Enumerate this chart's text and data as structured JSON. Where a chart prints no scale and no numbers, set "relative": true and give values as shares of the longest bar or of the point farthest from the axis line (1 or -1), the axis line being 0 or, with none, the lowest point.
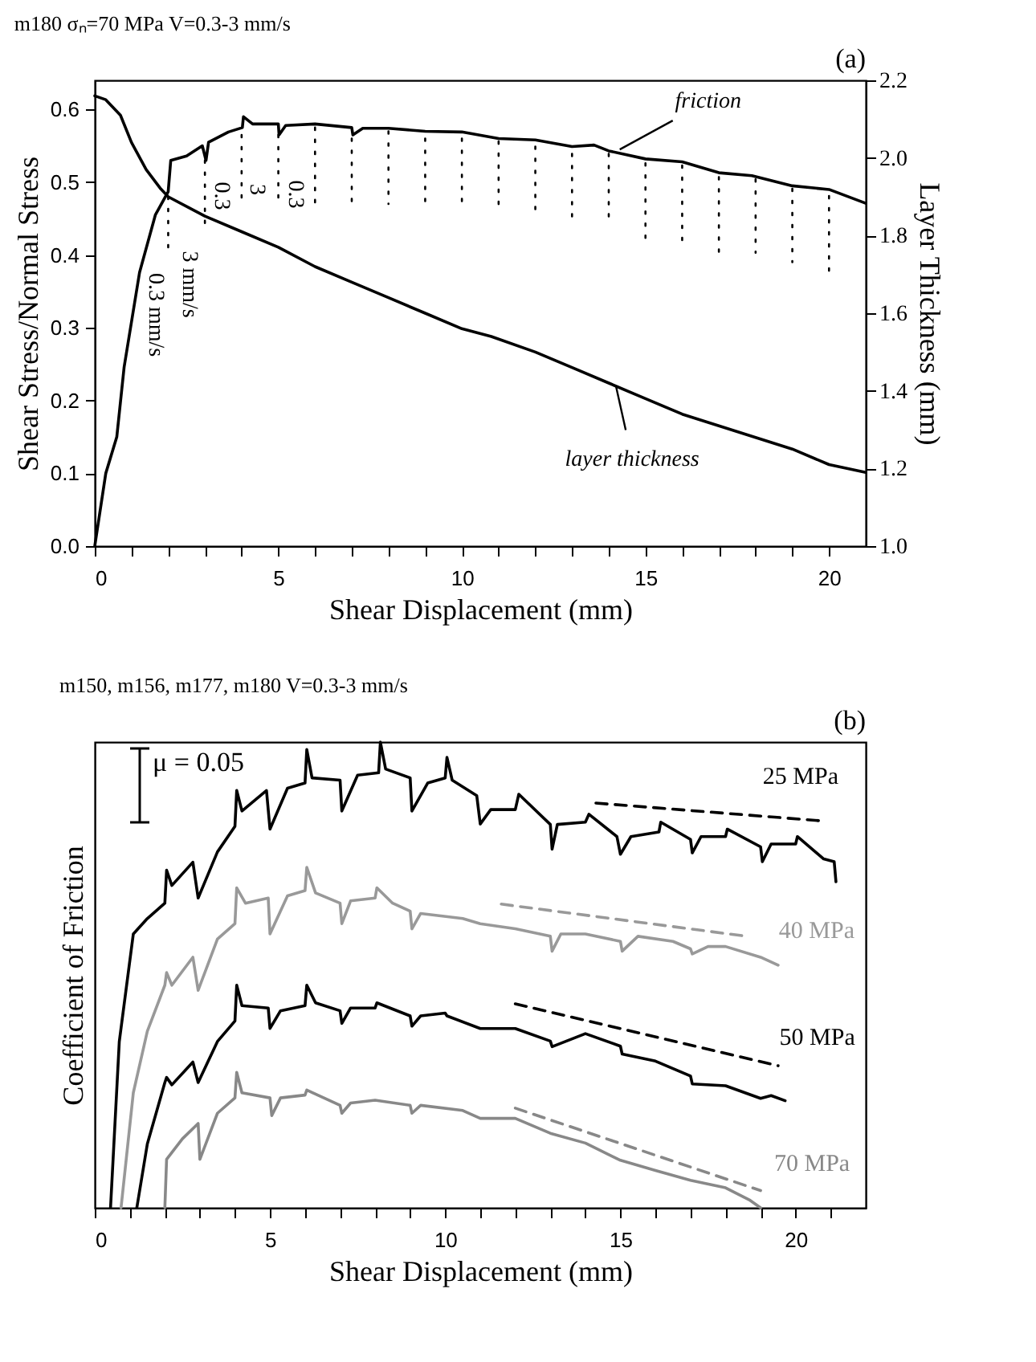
{
  "chart_data": [
    {
      "type": "line",
      "line_style": "solid",
      "title": "m180  σₙ=70 MPa  V=0.3-3 mm/s",
      "xlabel": "Shear Displacement (mm)",
      "ylabel": "Shear Stress/Normal Stress",
      "y2label": "Layer Thickness (mm)",
      "xlim": [
        0,
        21
      ],
      "xticks": [
        0,
        {
          "value": 1,
          "label": null
        },
        {
          "value": 2,
          "label": null
        },
        {
          "value": 3,
          "label": null
        },
        {
          "value": 4,
          "label": null
        },
        5,
        {
          "value": 6,
          "label": null
        },
        {
          "value": 7,
          "label": null
        },
        {
          "value": 8,
          "label": null
        },
        {
          "value": 9,
          "label": null
        },
        10,
        {
          "value": 11,
          "label": null
        },
        {
          "value": 12,
          "label": null
        },
        {
          "value": 13,
          "label": null
        },
        {
          "value": 14,
          "label": null
        },
        15,
        {
          "value": 16,
          "label": null
        },
        {
          "value": 17,
          "label": null
        },
        {
          "value": 18,
          "label": null
        },
        {
          "value": 19,
          "label": null
        },
        20
      ],
      "ylim": [
        0,
        0.64
      ],
      "yticks": [
        {
          "value": 0,
          "label": "0.0"
        },
        0.1,
        0.2,
        0.3,
        0.4,
        0.5,
        0.6
      ],
      "y2lim": [
        1.0,
        2.2
      ],
      "y2ticks": [
        {
          "value": 1,
          "label": "1.0"
        },
        1.2,
        1.4,
        1.6,
        1.8,
        {
          "value": 2,
          "label": "2.0"
        },
        2.2
      ],
      "series": [
        {
          "color": "#000000",
          "x": [
            0,
            0.3,
            0.6,
            0.8,
            1.22,
            1.65,
            2.0,
            2.07,
            2.5,
            2.93,
            3.03,
            3.1,
            3.64,
            4.02,
            4.05,
            4.3,
            5.0,
            5.02,
            5.2,
            6.0,
            7.0,
            7.03,
            7.3,
            8.0,
            9.0,
            10.0,
            11.0,
            12.0,
            13.0,
            13.6,
            14.0,
            15.0,
            16.0,
            17.0,
            17.9,
            19.0,
            20.0,
            21.0
          ],
          "values": [
            0,
            0.1,
            0.15,
            0.246,
            0.376,
            0.455,
            0.487,
            0.53,
            0.536,
            0.55,
            0.53,
            0.555,
            0.569,
            0.575,
            0.59,
            0.58,
            0.58,
            0.565,
            0.578,
            0.58,
            0.575,
            0.565,
            0.574,
            0.574,
            0.57,
            0.569,
            0.56,
            0.558,
            0.549,
            0.551,
            0.543,
            0.532,
            0.528,
            0.513,
            0.509,
            0.495,
            0.49,
            0.471
          ]
        },
        {
          "color": "#000000",
          "axis": "y2",
          "x": [
            0,
            0.3,
            0.7,
            1.0,
            1.4,
            1.8,
            2.0,
            3.0,
            4.0,
            5.0,
            6.0,
            7.0,
            8.0,
            9.0,
            10.0,
            10.8,
            12.0,
            13.0,
            14.0,
            15.0,
            16.0,
            17.0,
            18.0,
            19.0,
            20.0,
            21.0
          ],
          "values": [
            2.16,
            2.15,
            2.11,
            2.04,
            1.97,
            1.92,
            1.9,
            1.85,
            1.81,
            1.77,
            1.72,
            1.68,
            1.64,
            1.6,
            1.56,
            1.54,
            1.5,
            1.46,
            1.42,
            1.38,
            1.34,
            1.31,
            1.28,
            1.25,
            1.21,
            1.19
          ]
        },
        {
          "type": "line",
          "line_style": "dotted",
          "color": "#000000",
          "x": [
            2,
            2,
            null,
            3,
            3,
            null,
            4,
            4,
            null,
            5,
            5,
            null,
            6,
            6,
            null,
            7,
            7,
            null,
            8,
            8,
            null,
            9,
            9,
            null,
            10,
            10,
            null,
            11,
            11,
            null,
            12,
            12,
            null,
            13,
            13,
            null,
            14,
            14,
            null,
            15,
            15,
            null,
            16,
            16,
            null,
            17,
            17,
            null,
            18,
            18,
            null,
            19,
            19,
            null,
            20,
            20
          ],
          "values": [
            0.48,
            0.41,
            null,
            0.53,
            0.44,
            null,
            0.565,
            0.468,
            null,
            0.565,
            0.47,
            null,
            0.575,
            0.47,
            null,
            0.56,
            0.47,
            null,
            0.57,
            0.47,
            null,
            0.56,
            0.47,
            null,
            0.56,
            0.47,
            null,
            0.556,
            0.461,
            null,
            0.549,
            0.461,
            null,
            0.539,
            0.451,
            null,
            0.539,
            0.445,
            null,
            0.526,
            0.419,
            null,
            0.523,
            0.419,
            null,
            0.507,
            0.403,
            null,
            0.504,
            0.403,
            null,
            0.491,
            0.39,
            null,
            0.481,
            0.377
          ]
        }
      ],
      "annotations": [
        "(a)",
        {
          "text": "friction",
          "x": 14.3,
          "y": 0.545
        },
        {
          "text": "layer thickness",
          "x": 14.2,
          "y": 0.219
        },
        "0.3 mm/s",
        "3 mm/s",
        "0.3",
        "3",
        "0.3"
      ]
    },
    {
      "type": "line",
      "line_style": "solid",
      "relative": true,
      "title": "m150, m156, m177, m180    V=0.3-3 mm/s",
      "xlabel": "Shear Displacement (mm)",
      "ylabel": "Coefficient of Friction",
      "xlim": [
        0,
        22
      ],
      "xticks": [
        0,
        {
          "value": 1,
          "label": null
        },
        {
          "value": 2,
          "label": null
        },
        {
          "value": 3,
          "label": null
        },
        {
          "value": 4,
          "label": null
        },
        5,
        {
          "value": 6,
          "label": null
        },
        {
          "value": 7,
          "label": null
        },
        {
          "value": 8,
          "label": null
        },
        {
          "value": 9,
          "label": null
        },
        10,
        {
          "value": 11,
          "label": null
        },
        {
          "value": 12,
          "label": null
        },
        {
          "value": 13,
          "label": null
        },
        {
          "value": 14,
          "label": null
        },
        15,
        {
          "value": 16,
          "label": null
        },
        {
          "value": 17,
          "label": null
        },
        {
          "value": 18,
          "label": null
        },
        {
          "value": 19,
          "label": null
        },
        20,
        {
          "value": 21,
          "label": null
        }
      ],
      "series": [
        {
          "name": "25 MPa",
          "color": "#000000",
          "x": [
            0.45,
            0.7,
            1.1,
            1.5,
            2.0,
            2.05,
            2.2,
            2.8,
            2.95,
            3.5,
            4.0,
            4.05,
            4.2,
            4.9,
            5.0,
            5.5,
            6.0,
            6.05,
            6.2,
            7.0,
            7.05,
            7.5,
            8.1,
            8.15,
            8.3,
            9.0,
            9.05,
            9.5,
            10.0,
            10.05,
            10.2,
            10.9,
            11.0,
            11.3,
            12.0,
            12.1,
            13.0,
            13.05,
            13.2,
            14.0,
            14.1,
            14.9,
            15.0,
            15.3,
            16.1,
            16.15,
            17.0,
            17.05,
            17.3,
            18.0,
            18.05,
            19.0,
            19.05,
            19.3,
            20.0,
            20.05,
            20.8,
            21.1,
            21.15
          ],
          "values": [
            0,
            0.357,
            0.588,
            0.621,
            0.654,
            0.725,
            0.692,
            0.742,
            0.665,
            0.764,
            0.819,
            0.896,
            0.852,
            0.896,
            0.813,
            0.901,
            0.912,
            0.984,
            0.923,
            0.918,
            0.852,
            0.929,
            0.934,
            1.0,
            0.942,
            0.923,
            0.852,
            0.912,
            0.923,
            0.967,
            0.918,
            0.885,
            0.824,
            0.855,
            0.855,
            0.888,
            0.823,
            0.77,
            0.823,
            0.828,
            0.845,
            0.797,
            0.759,
            0.797,
            0.807,
            0.828,
            0.791,
            0.762,
            0.797,
            0.797,
            0.813,
            0.775,
            0.743,
            0.781,
            0.781,
            0.797,
            0.749,
            0.743,
            0.7
          ]
        },
        {
          "line_style": "dashed",
          "color": "#000000",
          "x": [
            14.3,
            20.7
          ],
          "values": [
            0.869,
            0.831
          ]
        },
        {
          "name": "40 MPa",
          "color": "#999999",
          "x": [
            0.75,
            1.1,
            1.5,
            2.0,
            2.05,
            2.2,
            2.8,
            2.95,
            3.5,
            4.0,
            4.05,
            4.3,
            4.95,
            5.0,
            5.5,
            6.0,
            6.05,
            6.3,
            7.0,
            7.05,
            7.3,
            8.0,
            8.05,
            8.5,
            9.0,
            9.05,
            9.3,
            10.5,
            11.0,
            12.0,
            13.0,
            13.05,
            13.3,
            14.0,
            15.0,
            15.05,
            15.5,
            16.5,
            17.0,
            17.05,
            17.5,
            18.0,
            19.0,
            19.5
          ],
          "values": [
            0,
            0.247,
            0.379,
            0.478,
            0.505,
            0.478,
            0.538,
            0.467,
            0.577,
            0.61,
            0.687,
            0.654,
            0.665,
            0.588,
            0.67,
            0.681,
            0.731,
            0.676,
            0.654,
            0.61,
            0.659,
            0.665,
            0.687,
            0.654,
            0.637,
            0.599,
            0.632,
            0.621,
            0.61,
            0.599,
            0.583,
            0.551,
            0.588,
            0.588,
            0.572,
            0.551,
            0.583,
            0.572,
            0.556,
            0.545,
            0.561,
            0.561,
            0.538,
            0.521
          ]
        },
        {
          "line_style": "dashed",
          "color": "#999999",
          "x": [
            11.6,
            18.6
          ],
          "values": [
            0.652,
            0.583
          ]
        },
        {
          "name": "50 MPa",
          "color": "#000000",
          "x": [
            1.2,
            1.5,
            2.0,
            2.05,
            2.2,
            2.8,
            2.95,
            3.5,
            4.0,
            4.05,
            4.2,
            4.95,
            5.0,
            5.3,
            6.0,
            6.05,
            6.3,
            7.0,
            7.05,
            7.3,
            8.0,
            8.05,
            9.0,
            9.05,
            9.3,
            10.0,
            10.05,
            11.0,
            12.0,
            13.0,
            13.05,
            14.0,
            15.0,
            15.05,
            16.0,
            17.0,
            17.05,
            18.0,
            19.0,
            19.3,
            19.7
          ],
          "values": [
            0,
            0.137,
            0.269,
            0.28,
            0.264,
            0.313,
            0.269,
            0.357,
            0.401,
            0.478,
            0.434,
            0.429,
            0.385,
            0.423,
            0.434,
            0.478,
            0.44,
            0.423,
            0.396,
            0.429,
            0.429,
            0.44,
            0.412,
            0.39,
            0.412,
            0.418,
            0.412,
            0.385,
            0.385,
            0.358,
            0.346,
            0.374,
            0.347,
            0.33,
            0.315,
            0.283,
            0.266,
            0.262,
            0.235,
            0.241,
            0.23
          ]
        },
        {
          "line_style": "dashed",
          "color": "#000000",
          "x": [
            12.0,
            19.5
          ],
          "values": [
            0.438,
            0.305
          ]
        },
        {
          "name": "70 MPa",
          "color": "#888888",
          "x": [
            2.0,
            2.05,
            2.5,
            2.95,
            3.0,
            3.5,
            4.0,
            4.05,
            4.2,
            5.0,
            5.05,
            5.3,
            6.0,
            6.05,
            7.0,
            7.05,
            7.3,
            8.0,
            9.0,
            9.05,
            9.3,
            10.5,
            11.0,
            12.0,
            13.0,
            14.0,
            15.0,
            16.0,
            17.0,
            18.0,
            18.7,
            19.0
          ],
          "values": [
            0,
            0.104,
            0.148,
            0.181,
            0.104,
            0.203,
            0.236,
            0.291,
            0.247,
            0.236,
            0.198,
            0.236,
            0.242,
            0.253,
            0.22,
            0.203,
            0.225,
            0.231,
            0.22,
            0.203,
            0.22,
            0.209,
            0.192,
            0.192,
            0.16,
            0.139,
            0.102,
            0.08,
            0.059,
            0.043,
            0.016,
            0
          ]
        },
        {
          "line_style": "dashed",
          "color": "#888888",
          "x": [
            12.0,
            19.0
          ],
          "values": [
            0.214,
            0.037
          ]
        }
      ],
      "annotations": [
        "(b)",
        "μ = 0.05"
      ]
    }
  ]
}
